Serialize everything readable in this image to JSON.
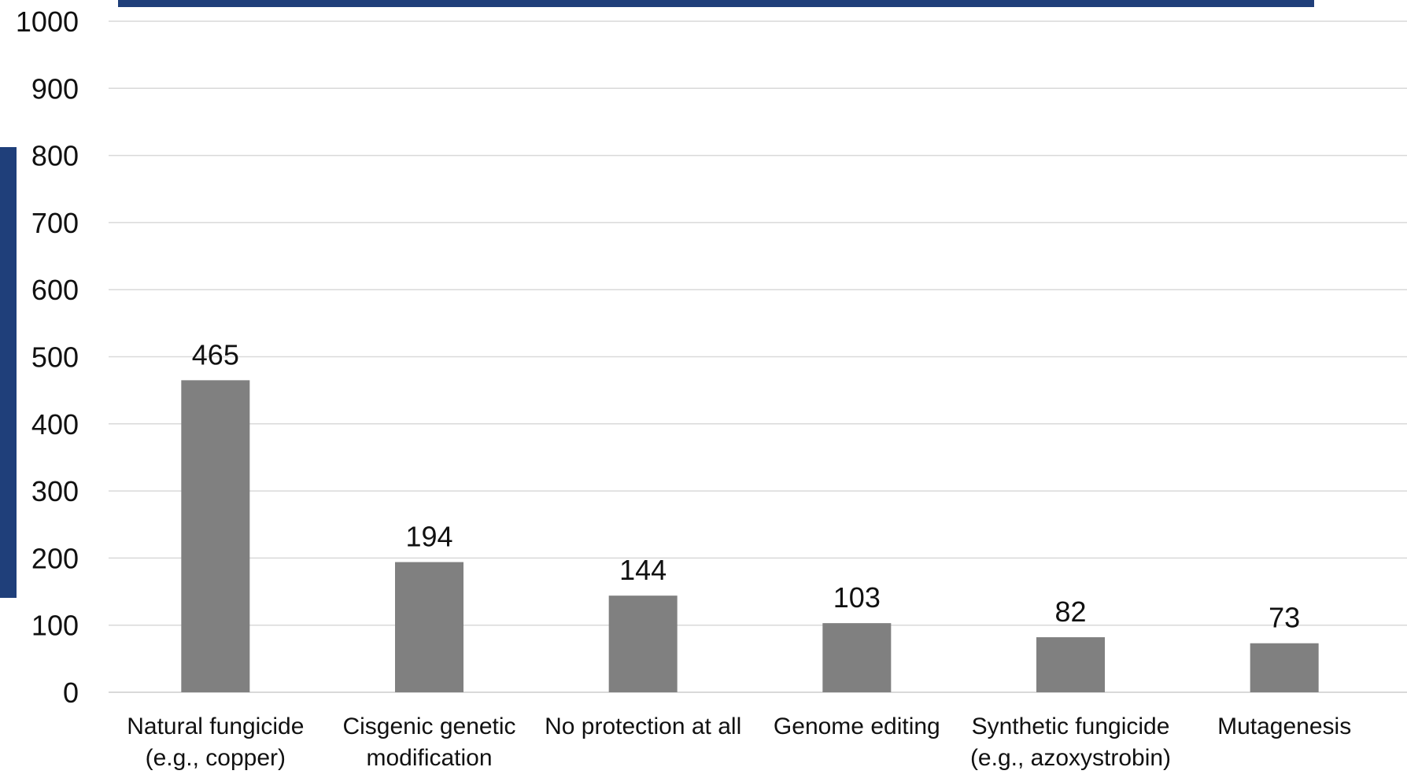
{
  "colors": {
    "bar": "#808080",
    "gridline": "#d9d9d9",
    "accent": "#1f3f7a",
    "text": "#111111"
  },
  "chart_data": {
    "type": "bar",
    "categories": [
      [
        "Natural fungicide",
        "(e.g., copper)"
      ],
      [
        "Cisgenic genetic",
        "modification"
      ],
      [
        "No protection at all"
      ],
      [
        "Genome editing"
      ],
      [
        "Synthetic fungicide",
        "(e.g., azoxystrobin)"
      ],
      [
        "Mutagenesis"
      ]
    ],
    "values": [
      465,
      194,
      144,
      103,
      82,
      73
    ],
    "ylim": [
      0,
      1000
    ],
    "yticks": [
      0,
      100,
      200,
      300,
      400,
      500,
      600,
      700,
      800,
      900,
      1000
    ],
    "grid": true,
    "data_labels": true
  }
}
